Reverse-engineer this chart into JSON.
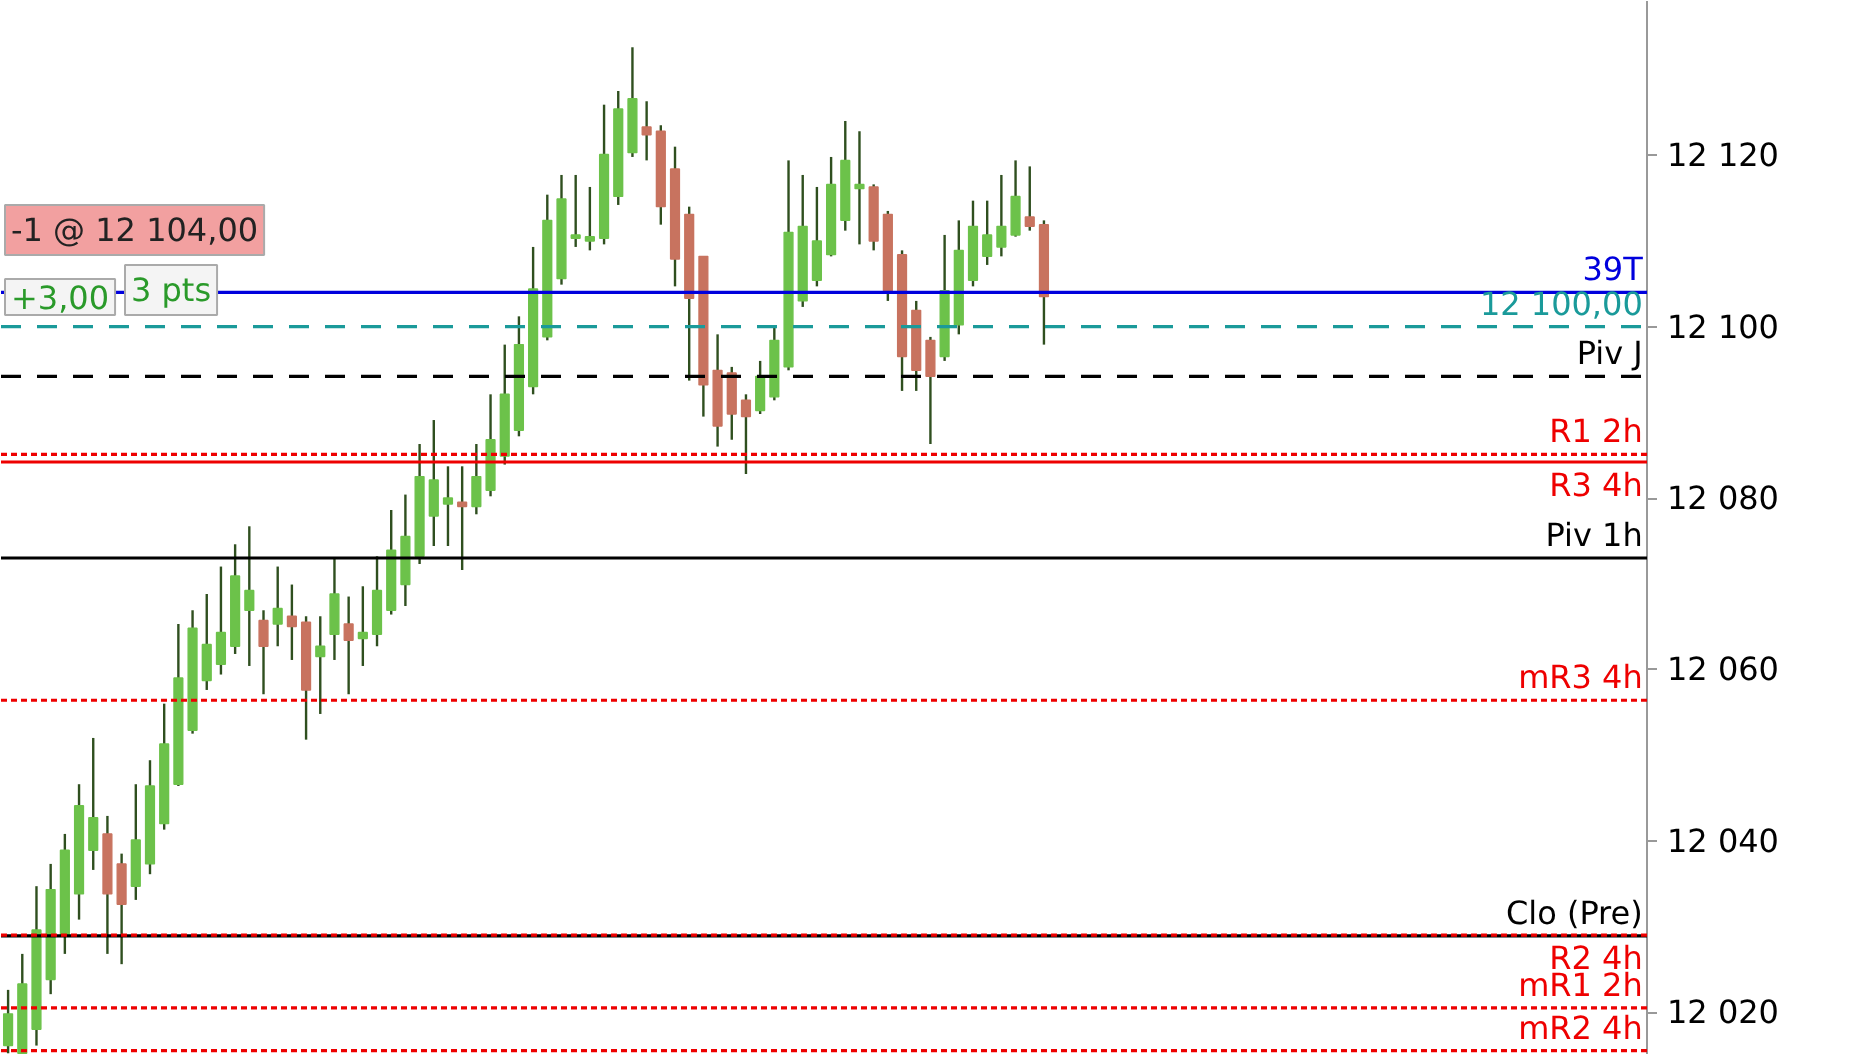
{
  "chart_data": {
    "type": "candlestick",
    "categories": [
      null,
      null,
      null,
      null,
      null,
      null,
      null,
      null,
      null,
      null,
      null,
      null,
      null,
      null,
      null,
      null,
      null,
      null,
      null,
      null,
      null,
      null,
      null,
      null,
      null,
      null,
      null,
      null,
      null,
      null,
      null,
      null,
      null,
      null,
      null,
      null,
      null,
      null,
      null,
      null,
      null,
      null,
      null,
      null,
      null,
      null,
      null,
      null,
      null,
      null,
      null,
      null,
      null,
      null,
      null,
      null,
      null,
      null,
      null,
      null,
      null,
      null,
      null,
      null,
      null,
      null,
      null,
      null,
      null,
      null,
      null,
      null,
      null,
      null,
      null,
      null,
      null,
      null,
      null,
      null,
      null,
      null,
      null,
      null,
      null,
      null,
      null,
      null,
      null,
      null,
      null,
      null,
      null,
      null,
      null,
      null,
      null,
      null,
      null,
      null,
      null,
      null,
      null,
      null,
      null,
      null,
      null,
      null,
      null,
      null,
      null,
      null,
      null,
      null,
      null,
      null
    ],
    "ohlc": [
      [
        12016.1,
        12022.6,
        12015.2,
        12019.8
      ],
      [
        12015.2,
        12026.8,
        12015.2,
        12023.3
      ],
      [
        12018.0,
        12034.7,
        12016.1,
        12029.6
      ],
      [
        12023.8,
        12037.3,
        12022.1,
        12034.3
      ],
      [
        12028.9,
        12040.8,
        12026.8,
        12038.9
      ],
      [
        12033.8,
        12046.6,
        12030.8,
        12044.1
      ],
      [
        12038.9,
        12052.0,
        12036.6,
        12042.7
      ],
      [
        12040.8,
        12042.9,
        12026.8,
        12033.8
      ],
      [
        12037.3,
        12038.5,
        12025.6,
        12032.6
      ],
      [
        12034.7,
        12046.6,
        12033.1,
        12040.1
      ],
      [
        12037.3,
        12049.4,
        12036.1,
        12046.4
      ],
      [
        12042.0,
        12056.0,
        12041.3,
        12051.3
      ],
      [
        12046.6,
        12065.3,
        12046.4,
        12059.0
      ],
      [
        12052.9,
        12066.9,
        12052.5,
        12064.8
      ],
      [
        12058.7,
        12068.8,
        12057.6,
        12062.9
      ],
      [
        12060.6,
        12072.0,
        12059.4,
        12064.3
      ],
      [
        12062.7,
        12074.6,
        12061.8,
        12070.9
      ],
      [
        12066.9,
        12076.7,
        12060.4,
        12069.2
      ],
      [
        12065.7,
        12066.9,
        12057.1,
        12062.7
      ],
      [
        12065.3,
        12072.0,
        12062.7,
        12067.1
      ],
      [
        12066.2,
        12069.9,
        12061.1,
        12065.0
      ],
      [
        12065.5,
        12066.2,
        12051.8,
        12057.6
      ],
      [
        12061.5,
        12066.2,
        12054.8,
        12062.7
      ],
      [
        12064.1,
        12073.0,
        12061.1,
        12068.8
      ],
      [
        12065.3,
        12068.5,
        12057.1,
        12063.4
      ],
      [
        12063.6,
        12069.7,
        12060.4,
        12064.3
      ],
      [
        12064.1,
        12073.2,
        12062.7,
        12069.2
      ],
      [
        12066.9,
        12078.6,
        12066.4,
        12073.9
      ],
      [
        12069.9,
        12080.4,
        12067.4,
        12075.5
      ],
      [
        12073.2,
        12086.3,
        12072.3,
        12082.5
      ],
      [
        12077.9,
        12089.1,
        12074.4,
        12082.1
      ],
      [
        12079.3,
        12083.7,
        12074.4,
        12080.0
      ],
      [
        12079.5,
        12083.7,
        12071.6,
        12079.0
      ],
      [
        12079.0,
        12086.3,
        12078.1,
        12082.5
      ],
      [
        12080.9,
        12092.1,
        12080.2,
        12086.8
      ],
      [
        12084.9,
        12097.9,
        12083.9,
        12092.1
      ],
      [
        12087.9,
        12101.2,
        12087.2,
        12097.9
      ],
      [
        12093.0,
        12109.3,
        12092.1,
        12104.4
      ],
      [
        12098.8,
        12115.4,
        12098.4,
        12112.4
      ],
      [
        12105.6,
        12117.7,
        12104.9,
        12114.9
      ],
      [
        12110.3,
        12117.7,
        12109.3,
        12110.7
      ],
      [
        12110.0,
        12116.3,
        12108.9,
        12110.5
      ],
      [
        12110.3,
        12125.9,
        12109.6,
        12120.1
      ],
      [
        12115.2,
        12127.5,
        12114.2,
        12125.4
      ],
      [
        12120.3,
        12132.6,
        12119.8,
        12126.6
      ],
      [
        12123.3,
        12126.3,
        12119.4,
        12122.4
      ],
      [
        12122.8,
        12123.5,
        12111.9,
        12114.0
      ],
      [
        12118.4,
        12121.0,
        12104.7,
        12107.9
      ],
      [
        12113.1,
        12114.0,
        12093.7,
        12103.3
      ],
      [
        12108.2,
        12108.2,
        12089.5,
        12093.2
      ],
      [
        12094.9,
        12099.1,
        12086.0,
        12088.4
      ],
      [
        12094.6,
        12095.3,
        12086.8,
        12089.8
      ],
      [
        12091.4,
        12092.1,
        12082.8,
        12089.5
      ],
      [
        12090.2,
        12096.0,
        12089.8,
        12094.2
      ],
      [
        12091.8,
        12100.0,
        12091.4,
        12098.4
      ],
      [
        12095.3,
        12119.4,
        12094.9,
        12111.0
      ],
      [
        12103.0,
        12117.7,
        12102.3,
        12111.7
      ],
      [
        12105.4,
        12116.3,
        12104.7,
        12110.0
      ],
      [
        12108.4,
        12119.8,
        12108.2,
        12116.6
      ],
      [
        12112.4,
        12124.0,
        12111.2,
        12119.4
      ],
      [
        12116.1,
        12122.8,
        12109.6,
        12116.6
      ],
      [
        12116.3,
        12116.6,
        12108.9,
        12110.0
      ],
      [
        12113.1,
        12113.5,
        12103.0,
        12104.2
      ],
      [
        12108.4,
        12108.9,
        12092.5,
        12096.5
      ],
      [
        12101.9,
        12103.0,
        12092.5,
        12094.9
      ],
      [
        12098.4,
        12098.8,
        12086.3,
        12094.2
      ],
      [
        12096.5,
        12110.7,
        12096.0,
        12104.2
      ],
      [
        12100.2,
        12112.4,
        12099.1,
        12108.9
      ],
      [
        12105.4,
        12114.7,
        12104.7,
        12111.7
      ],
      [
        12108.2,
        12114.7,
        12107.2,
        12110.7
      ],
      [
        12109.3,
        12117.7,
        12108.2,
        12111.7
      ],
      [
        12110.7,
        12119.4,
        12110.5,
        12115.2
      ],
      [
        12112.8,
        12118.7,
        12111.2,
        12111.7
      ],
      [
        12111.9,
        12112.4,
        12097.9,
        12103.5
      ],
      null,
      null,
      null,
      null,
      null,
      null,
      null,
      null,
      null,
      null,
      null,
      null,
      null,
      null,
      null,
      null,
      null,
      null,
      null,
      null,
      null,
      null,
      null,
      null,
      null,
      null,
      null,
      null,
      null,
      null,
      null,
      null,
      null,
      null,
      null,
      null,
      null,
      null,
      null,
      null,
      null,
      null
    ],
    "colors": [
      "#6cc24a",
      "#6cc24a",
      "#6cc24a",
      "#6cc24a",
      "#6cc24a",
      "#6cc24a",
      "#6cc24a",
      "#c8735f",
      "#c8735f",
      "#6cc24a",
      "#6cc24a",
      "#6cc24a",
      "#6cc24a",
      "#6cc24a",
      "#6cc24a",
      "#6cc24a",
      "#6cc24a",
      "#6cc24a",
      "#c8735f",
      "#6cc24a",
      "#c8735f",
      "#c8735f",
      "#6cc24a",
      "#6cc24a",
      "#c8735f",
      "#6cc24a",
      "#6cc24a",
      "#6cc24a",
      "#6cc24a",
      "#6cc24a",
      "#6cc24a",
      "#6cc24a",
      "#c8735f",
      "#6cc24a",
      "#6cc24a",
      "#6cc24a",
      "#6cc24a",
      "#6cc24a",
      "#6cc24a",
      "#6cc24a",
      "#6cc24a",
      "#6cc24a",
      "#6cc24a",
      "#6cc24a",
      "#6cc24a",
      "#c8735f",
      "#c8735f",
      "#c8735f",
      "#c8735f",
      "#c8735f",
      "#c8735f",
      "#c8735f",
      "#c8735f",
      "#6cc24a",
      "#6cc24a",
      "#6cc24a",
      "#6cc24a",
      "#6cc24a",
      "#6cc24a",
      "#6cc24a",
      "#6cc24a",
      "#c8735f",
      "#c8735f",
      "#c8735f",
      "#c8735f",
      "#c8735f",
      "#6cc24a",
      "#6cc24a",
      "#6cc24a",
      "#6cc24a",
      "#6cc24a",
      "#6cc24a",
      "#c8735f",
      "#c8735f",
      null,
      null,
      null,
      null,
      null,
      null,
      null,
      null,
      null,
      null,
      null,
      null,
      null,
      null,
      null,
      null,
      null,
      null,
      null,
      null,
      null,
      null,
      null,
      null,
      null,
      null,
      null,
      null,
      null,
      null,
      null,
      null,
      null,
      null,
      null,
      null,
      null,
      null,
      null,
      null,
      null,
      null
    ],
    "ylim": [
      12015,
      12138
    ],
    "yticks": [
      {
        "value": 12020,
        "label": "12 020"
      },
      {
        "value": 12040,
        "label": "12 040"
      },
      {
        "value": 12060,
        "label": "12 060"
      },
      {
        "value": 12080,
        "label": "12 080"
      },
      {
        "value": 12100,
        "label": "12 100"
      },
      {
        "value": 12120,
        "label": "12 120"
      }
    ],
    "tick_labels": "y",
    "grid": false,
    "ref_lines": [
      {
        "axis": "y",
        "value": 12104,
        "label": "39T",
        "color": "#0000dd",
        "line_style": "solid"
      },
      {
        "axis": "y",
        "value": 12100,
        "label": "12 100,00",
        "color": "#1a9a9a",
        "line_style": "dashed"
      },
      {
        "axis": "y",
        "value": 12094.2,
        "label": "Piv J",
        "color": "#000000",
        "line_style": "dashed"
      },
      {
        "axis": "y",
        "value": 12085.1,
        "label": "R1 2h",
        "color": "#ee0000",
        "line_style": "dotted"
      },
      {
        "axis": "y",
        "value": 12084.2,
        "label": "R3 4h",
        "color": "#ee0000",
        "line_style": "solid"
      },
      {
        "axis": "y",
        "value": 12073.0,
        "label": "Piv 1h",
        "color": "#000000",
        "line_style": "solid"
      },
      {
        "axis": "y",
        "value": 12056.4,
        "label": "mR3 4h",
        "color": "#ee0000",
        "line_style": "dotted"
      },
      {
        "axis": "y",
        "value": 12028.9,
        "label": "Clo (Pre)",
        "color": "#000000",
        "line_style": "solid"
      },
      {
        "axis": "y",
        "value": 12029.0,
        "label": "R2 4h",
        "color": "#ee0000",
        "line_style": "dotted"
      },
      {
        "axis": "y",
        "value": 12020.5,
        "label": "mR1 2h",
        "color": "#ee0000",
        "line_style": "dotted"
      },
      {
        "axis": "y",
        "value": 12015.5,
        "label": "mR2 4h",
        "color": "#ee0000",
        "line_style": "dotted"
      }
    ],
    "annotations": [
      "-1 @ 12 104,00",
      "+3,00",
      "3 pts"
    ]
  }
}
